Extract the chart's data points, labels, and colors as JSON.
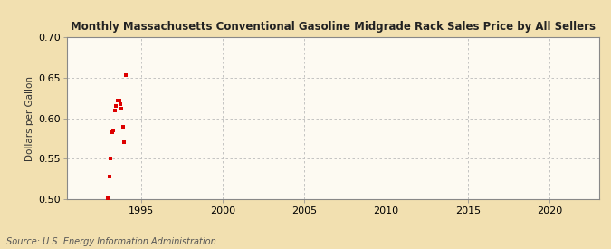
{
  "title": "Monthly Massachusetts Conventional Gasoline Midgrade Rack Sales Price by All Sellers",
  "ylabel": "Dollars per Gallon",
  "source": "Source: U.S. Energy Information Administration",
  "background_color": "#f2e0b0",
  "plot_background_color": "#fdfaf2",
  "grid_color": "#bbbbbb",
  "point_color": "#dd0000",
  "xlim": [
    1990.5,
    2023
  ],
  "ylim": [
    0.5,
    0.7
  ],
  "xticks": [
    1995,
    2000,
    2005,
    2010,
    2015,
    2020
  ],
  "yticks": [
    0.5,
    0.55,
    0.6,
    0.65,
    0.7
  ],
  "data_x": [
    1993.0,
    1993.08,
    1993.17,
    1993.25,
    1993.33,
    1993.42,
    1993.5,
    1993.58,
    1993.67,
    1993.75,
    1993.83,
    1993.92,
    1994.0,
    1994.08
  ],
  "data_y": [
    0.501,
    0.528,
    0.55,
    0.583,
    0.585,
    0.61,
    0.615,
    0.622,
    0.622,
    0.617,
    0.612,
    0.59,
    0.57,
    0.653
  ]
}
